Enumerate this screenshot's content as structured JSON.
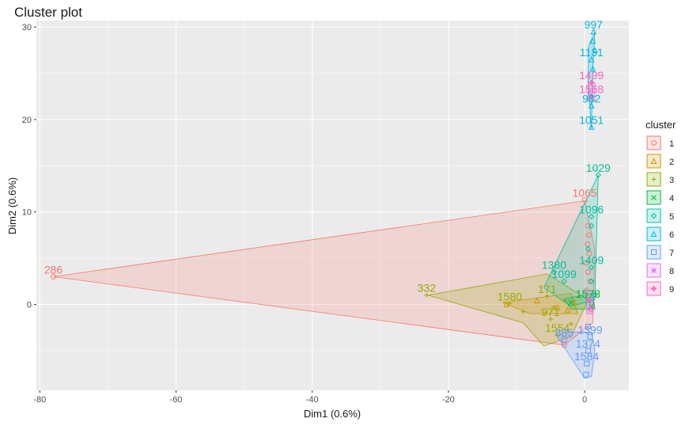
{
  "chart_data": {
    "type": "scatter",
    "title": "Cluster plot",
    "xlabel": "Dim1 (0.6%)",
    "ylabel": "Dim2 (0.6%)",
    "xlim": [
      -80.5,
      6.5
    ],
    "ylim": [
      -9.3,
      30.7
    ],
    "x_ticks": [
      -80,
      -60,
      -40,
      -20,
      0
    ],
    "y_ticks": [
      0,
      10,
      20,
      30
    ],
    "grid": true,
    "legend_title": "cluster",
    "legend_position": "right",
    "series": [
      {
        "name": "1",
        "color": "#F8766D",
        "symbol": "circle",
        "hull": [
          [
            -78,
            3
          ],
          [
            0,
            11.2
          ],
          [
            1.5,
            6
          ],
          [
            1.2,
            -2
          ],
          [
            -3,
            -4.4
          ]
        ],
        "points": [
          {
            "x": -78,
            "y": 3,
            "label": "286"
          },
          {
            "x": 0,
            "y": 11.3,
            "label": "1065"
          },
          {
            "x": 0.5,
            "y": 8.5,
            "label": ""
          },
          {
            "x": 0.6,
            "y": 7.5,
            "label": ""
          },
          {
            "x": 0.4,
            "y": 6.5,
            "label": ""
          },
          {
            "x": 0.7,
            "y": 5.5,
            "label": ""
          },
          {
            "x": 0.2,
            "y": 4.5,
            "label": ""
          },
          {
            "x": 0.5,
            "y": 3.5,
            "label": ""
          },
          {
            "x": 0.8,
            "y": 2.5,
            "label": ""
          },
          {
            "x": 0.3,
            "y": 1.5,
            "label": ""
          },
          {
            "x": 0.6,
            "y": 0.5,
            "label": ""
          },
          {
            "x": 0.9,
            "y": -0.5,
            "label": ""
          },
          {
            "x": -3,
            "y": -4.4,
            "label": ""
          }
        ]
      },
      {
        "name": "2",
        "color": "#D39200",
        "symbol": "triangle",
        "hull": [
          [
            -12,
            0.2
          ],
          [
            -2,
            1.2
          ],
          [
            -1,
            -1
          ],
          [
            -8,
            -1
          ]
        ],
        "points": [
          {
            "x": -11.5,
            "y": 0,
            "label": ""
          },
          {
            "x": -7,
            "y": 0.4,
            "label": ""
          },
          {
            "x": -4,
            "y": -0.3,
            "label": ""
          },
          {
            "x": -1.5,
            "y": 0.2,
            "label": ""
          },
          {
            "x": -2.5,
            "y": -0.6,
            "label": ""
          }
        ]
      },
      {
        "name": "3",
        "color": "#93AA00",
        "symbol": "plus",
        "hull": [
          [
            -23,
            1
          ],
          [
            -5.5,
            3.3
          ],
          [
            0.5,
            0.5
          ],
          [
            -2,
            -3.5
          ],
          [
            -6,
            -4.5
          ],
          [
            -9,
            -2
          ]
        ],
        "points": [
          {
            "x": -23.2,
            "y": 1,
            "label": "332"
          },
          {
            "x": -11,
            "y": 0.1,
            "label": "1580"
          },
          {
            "x": -9,
            "y": -0.8,
            "label": ""
          },
          {
            "x": -5.5,
            "y": 0.9,
            "label": "171"
          },
          {
            "x": -4.5,
            "y": -0.3,
            "label": ""
          },
          {
            "x": -3,
            "y": 0.4,
            "label": ""
          },
          {
            "x": -5,
            "y": -1.6,
            "label": "971"
          },
          {
            "x": -4,
            "y": -3.3,
            "label": "1554"
          },
          {
            "x": -2,
            "y": -2.1,
            "label": ""
          }
        ]
      },
      {
        "name": "4",
        "color": "#00BA38",
        "symbol": "x",
        "hull": [
          [
            -3,
            0.6
          ],
          [
            1.2,
            1.2
          ],
          [
            1.5,
            -0.5
          ],
          [
            -2,
            -0.5
          ]
        ],
        "points": [
          {
            "x": -2,
            "y": 0.2,
            "label": ""
          },
          {
            "x": 0.5,
            "y": 0.4,
            "label": "1578"
          },
          {
            "x": 1,
            "y": -0.2,
            "label": ""
          }
        ]
      },
      {
        "name": "5",
        "color": "#00C19F",
        "symbol": "diamond",
        "hull": [
          [
            2,
            14
          ],
          [
            -6,
            1.8
          ],
          [
            -2,
            -0.2
          ],
          [
            1.5,
            0.5
          ]
        ],
        "points": [
          {
            "x": 2,
            "y": 14,
            "label": "1029"
          },
          {
            "x": 1,
            "y": 9.5,
            "label": "1096"
          },
          {
            "x": 1,
            "y": 8.5,
            "label": ""
          },
          {
            "x": 0.5,
            "y": 6,
            "label": ""
          },
          {
            "x": 1,
            "y": 4,
            "label": "1409"
          },
          {
            "x": -4.5,
            "y": 3.5,
            "label": "1380"
          },
          {
            "x": -3,
            "y": 2.5,
            "label": "1099"
          },
          {
            "x": 1,
            "y": 2.5,
            "label": ""
          },
          {
            "x": 1.5,
            "y": 1,
            "label": ""
          }
        ]
      },
      {
        "name": "6",
        "color": "#00B9E3",
        "symbol": "square",
        "hull": [
          [
            1.5,
            29.5
          ],
          [
            1.2,
            25.5
          ],
          [
            1,
            19
          ],
          [
            0.5,
            24
          ],
          [
            0.6,
            28
          ]
        ],
        "points": [
          {
            "x": 1.3,
            "y": 29.5,
            "label": "997"
          },
          {
            "x": 1.2,
            "y": 28.5,
            "label": ""
          },
          {
            "x": 1.5,
            "y": 27.5,
            "label": ""
          },
          {
            "x": 1,
            "y": 26.5,
            "label": "1131"
          },
          {
            "x": 1.2,
            "y": 25.5,
            "label": ""
          },
          {
            "x": 1,
            "y": 21.5,
            "label": "982"
          },
          {
            "x": 1,
            "y": 19.2,
            "label": "1051"
          }
        ]
      },
      {
        "name": "7",
        "color": "#619CFF",
        "symbol": "square-open",
        "hull": [
          [
            -3,
            -3
          ],
          [
            1,
            -3
          ],
          [
            1.5,
            -5
          ],
          [
            1,
            -7.8
          ],
          [
            0,
            -8
          ],
          [
            -4,
            -3.5
          ]
        ],
        "points": [
          {
            "x": -3,
            "y": -3.8,
            "label": "885"
          },
          {
            "x": 0.5,
            "y": -2.4,
            "label": ""
          },
          {
            "x": 0.8,
            "y": -3.5,
            "label": "1399"
          },
          {
            "x": 0.5,
            "y": -5,
            "label": "1374"
          },
          {
            "x": 0.3,
            "y": -6.4,
            "label": "1584"
          },
          {
            "x": 0.2,
            "y": -7.6,
            "label": ""
          }
        ]
      },
      {
        "name": "8",
        "color": "#DB72FB",
        "symbol": "star",
        "hull": [
          [
            0.3,
            1.5
          ],
          [
            1.2,
            1.5
          ],
          [
            1.2,
            -1
          ],
          [
            0.3,
            -1
          ]
        ],
        "points": [
          {
            "x": 0.6,
            "y": 0.5,
            "label": ""
          },
          {
            "x": 0.9,
            "y": -0.4,
            "label": ""
          }
        ]
      },
      {
        "name": "9",
        "color": "#FF61C3",
        "symbol": "diamond-plus",
        "hull": [
          [
            0.5,
            24
          ],
          [
            1.5,
            24
          ],
          [
            1.5,
            22
          ],
          [
            0.5,
            22
          ]
        ],
        "points": [
          {
            "x": 1,
            "y": 24,
            "label": "1499"
          },
          {
            "x": 1,
            "y": 22.5,
            "label": "1568"
          }
        ]
      }
    ]
  }
}
